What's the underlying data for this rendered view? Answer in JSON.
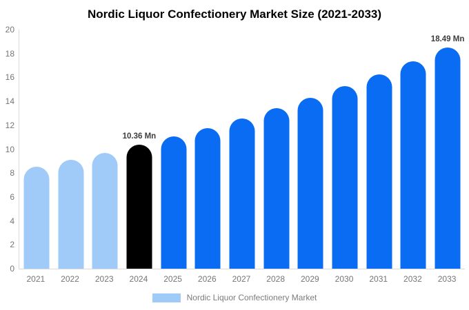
{
  "title": "Nordic Liquor Confectionery Market Size (2021-2033)",
  "colors": {
    "historical_bar": "#a0cbf8",
    "base_year_bar": "#000000",
    "forecast_bar": "#0a6cf2",
    "axis_line": "#d9d9d9",
    "tick_text": "#757575",
    "data_label_text": "#3d3d3d",
    "legend_text": "#7c7c7c",
    "background": "#ffffff"
  },
  "chart_data": {
    "type": "bar",
    "title": "Nordic Liquor Confectionery Market Size (2021-2033)",
    "xlabel": "",
    "ylabel": "",
    "unit": "Mn",
    "categories": [
      "2021",
      "2022",
      "2023",
      "2024",
      "2025",
      "2026",
      "2027",
      "2028",
      "2029",
      "2030",
      "2031",
      "2032",
      "2033"
    ],
    "values": [
      8.54,
      9.11,
      9.71,
      10.36,
      11.05,
      11.78,
      12.57,
      13.41,
      14.3,
      15.25,
      16.26,
      17.34,
      18.49
    ],
    "point_colors": [
      "#a0cbf8",
      "#a0cbf8",
      "#a0cbf8",
      "#000000",
      "#0a6cf2",
      "#0a6cf2",
      "#0a6cf2",
      "#0a6cf2",
      "#0a6cf2",
      "#0a6cf2",
      "#0a6cf2",
      "#0a6cf2",
      "#0a6cf2"
    ],
    "data_labels": [
      "",
      "",
      "",
      "10.36 Mn",
      "",
      "",
      "",
      "",
      "",
      "",
      "",
      "",
      "18.49 Mn"
    ],
    "ylim": [
      0,
      20
    ],
    "yticks": [
      0,
      2,
      4,
      6,
      8,
      10,
      12,
      14,
      16,
      18,
      20
    ],
    "grid": false,
    "legend": {
      "position": "bottom",
      "label": "Nordic Liquor Confectionery Market",
      "swatch_color": "#a0cbf8"
    }
  }
}
